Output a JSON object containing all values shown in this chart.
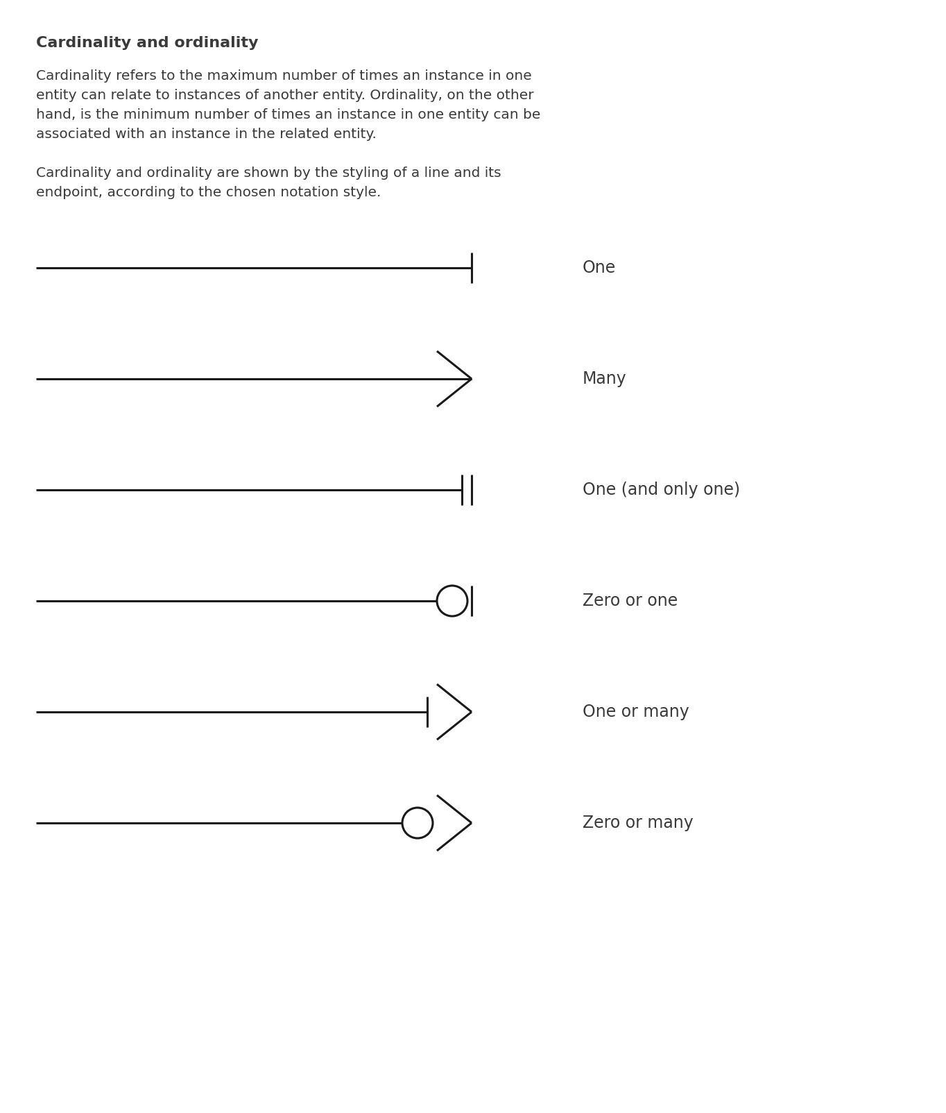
{
  "title": "Cardinality and ordinality",
  "p1_lines": [
    "Cardinality refers to the maximum number of times an instance in one",
    "entity can relate to instances of another entity. Ordinality, on the other",
    "hand, is the minimum number of times an instance in one entity can be",
    "associated with an instance in the related entity."
  ],
  "p2_lines": [
    "Cardinality and ordinality are shown by the styling of a line and its",
    "endpoint, according to the chosen notation style."
  ],
  "bg_color": "#ffffff",
  "text_color": "#3a3a3a",
  "line_color": "#1a1a1a",
  "rows": [
    {
      "label": "One",
      "type": "one"
    },
    {
      "label": "Many",
      "type": "many"
    },
    {
      "label": "One (and only one)",
      "type": "one_and_only_one"
    },
    {
      "label": "Zero or one",
      "type": "zero_or_one"
    },
    {
      "label": "One or many",
      "type": "one_or_many"
    },
    {
      "label": "Zero or many",
      "type": "zero_or_many"
    }
  ],
  "title_fontsize": 16,
  "body_fontsize": 14.5,
  "label_fontsize": 17
}
